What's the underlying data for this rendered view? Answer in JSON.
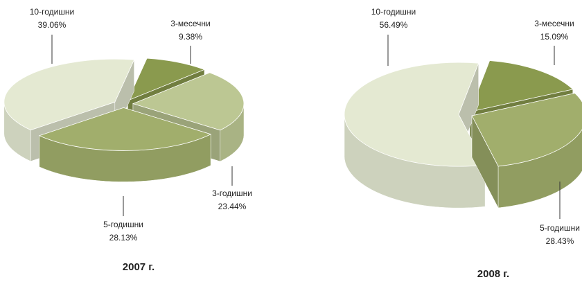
{
  "chart_data": [
    {
      "type": "pie",
      "title": "2007 г.",
      "categories": [
        "3-месечни",
        "3-годишни",
        "5-годишни",
        "10-годишни"
      ],
      "values": [
        9.38,
        23.44,
        28.13,
        39.06
      ],
      "value_labels": [
        "9.38%",
        "23.44%",
        "28.13%",
        "39.06%"
      ],
      "colors": [
        "#8a9a4e",
        "#bcc793",
        "#a1ae6c",
        "#e4e9d2"
      ]
    },
    {
      "type": "pie",
      "title": "2008 г.",
      "categories": [
        "3-месечни",
        "5-годишни",
        "10-годишни"
      ],
      "values": [
        15.09,
        28.43,
        56.49
      ],
      "value_labels": [
        "15.09%",
        "28.43%",
        "56.49%"
      ],
      "colors": [
        "#8a9a4e",
        "#a1ae6c",
        "#e4e9d2"
      ]
    }
  ]
}
